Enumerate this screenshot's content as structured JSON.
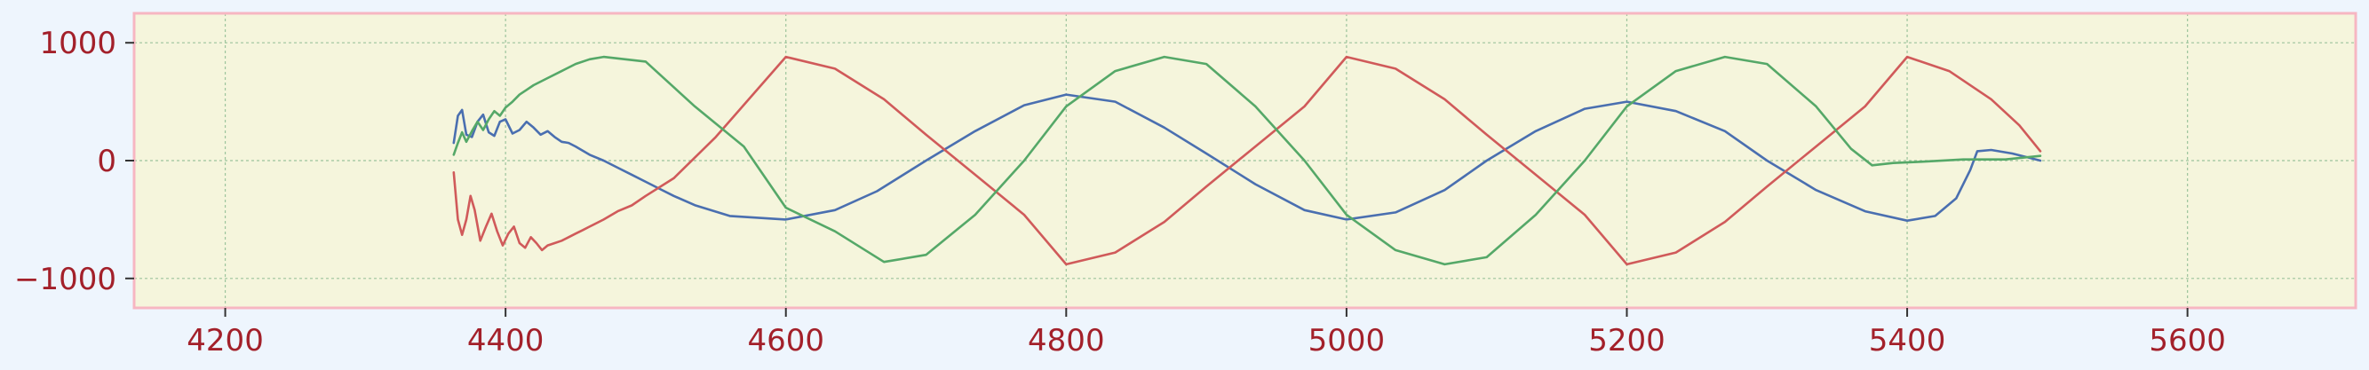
{
  "chart_data": {
    "type": "line",
    "title": "",
    "xlabel": "",
    "ylabel": "",
    "xlim": [
      4135,
      5720
    ],
    "ylim": [
      -1250,
      1250
    ],
    "grid": true,
    "legend": "none",
    "xticks": [
      4200,
      4400,
      4600,
      4800,
      5000,
      5200,
      5400,
      5600
    ],
    "yticks": [
      1000,
      0,
      -1000
    ],
    "xtick_labels": [
      "4200",
      "4400",
      "4600",
      "4800",
      "5000",
      "5200",
      "5400",
      "5600"
    ],
    "ytick_labels": [
      "1000",
      "0",
      "−1000"
    ],
    "colors": {
      "page_bg": "#eef5fd",
      "plot_bg": "#f5f5dc",
      "frame": "#f7b6c2",
      "grid": "#9cc49c",
      "tick_label": "#a3202a"
    },
    "series": [
      {
        "color": "#4a6fb0",
        "points": [
          [
            4363,
            150
          ],
          [
            4366,
            380
          ],
          [
            4369,
            430
          ],
          [
            4372,
            220
          ],
          [
            4376,
            200
          ],
          [
            4380,
            330
          ],
          [
            4384,
            390
          ],
          [
            4388,
            240
          ],
          [
            4392,
            210
          ],
          [
            4396,
            330
          ],
          [
            4400,
            350
          ],
          [
            4405,
            230
          ],
          [
            4410,
            260
          ],
          [
            4415,
            330
          ],
          [
            4420,
            280
          ],
          [
            4425,
            220
          ],
          [
            4430,
            250
          ],
          [
            4435,
            200
          ],
          [
            4440,
            160
          ],
          [
            4445,
            150
          ],
          [
            4450,
            120
          ],
          [
            4460,
            50
          ],
          [
            4470,
            0
          ],
          [
            4480,
            -60
          ],
          [
            4490,
            -120
          ],
          [
            4500,
            -180
          ],
          [
            4510,
            -240
          ],
          [
            4520,
            -300
          ],
          [
            4535,
            -378
          ],
          [
            4560,
            -470
          ],
          [
            4600,
            -500
          ],
          [
            4635,
            -420
          ],
          [
            4665,
            -260
          ],
          [
            4700,
            0
          ],
          [
            4735,
            250
          ],
          [
            4770,
            470
          ],
          [
            4800,
            560
          ],
          [
            4835,
            500
          ],
          [
            4870,
            280
          ],
          [
            4900,
            60
          ],
          [
            4935,
            -200
          ],
          [
            4970,
            -420
          ],
          [
            5000,
            -500
          ],
          [
            5035,
            -440
          ],
          [
            5070,
            -250
          ],
          [
            5100,
            0
          ],
          [
            5135,
            250
          ],
          [
            5170,
            440
          ],
          [
            5200,
            500
          ],
          [
            5235,
            420
          ],
          [
            5270,
            250
          ],
          [
            5300,
            0
          ],
          [
            5335,
            -250
          ],
          [
            5370,
            -430
          ],
          [
            5400,
            -510
          ],
          [
            5420,
            -470
          ],
          [
            5435,
            -320
          ],
          [
            5445,
            -80
          ],
          [
            5450,
            80
          ],
          [
            5460,
            90
          ],
          [
            5475,
            60
          ],
          [
            5495,
            0
          ]
        ]
      },
      {
        "color": "#d05a5a",
        "points": [
          [
            4363,
            -100
          ],
          [
            4366,
            -500
          ],
          [
            4369,
            -630
          ],
          [
            4372,
            -500
          ],
          [
            4375,
            -300
          ],
          [
            4378,
            -420
          ],
          [
            4382,
            -680
          ],
          [
            4386,
            -560
          ],
          [
            4390,
            -450
          ],
          [
            4394,
            -600
          ],
          [
            4398,
            -720
          ],
          [
            4402,
            -620
          ],
          [
            4406,
            -560
          ],
          [
            4410,
            -700
          ],
          [
            4414,
            -740
          ],
          [
            4418,
            -650
          ],
          [
            4422,
            -700
          ],
          [
            4426,
            -760
          ],
          [
            4430,
            -720
          ],
          [
            4435,
            -700
          ],
          [
            4440,
            -680
          ],
          [
            4445,
            -650
          ],
          [
            4450,
            -620
          ],
          [
            4455,
            -590
          ],
          [
            4460,
            -560
          ],
          [
            4470,
            -500
          ],
          [
            4480,
            -430
          ],
          [
            4490,
            -380
          ],
          [
            4500,
            -300
          ],
          [
            4520,
            -150
          ],
          [
            4550,
            200
          ],
          [
            4600,
            880
          ],
          [
            4635,
            780
          ],
          [
            4670,
            520
          ],
          [
            4700,
            220
          ],
          [
            4735,
            -120
          ],
          [
            4770,
            -460
          ],
          [
            4800,
            -880
          ],
          [
            4835,
            -780
          ],
          [
            4870,
            -520
          ],
          [
            4900,
            -220
          ],
          [
            4935,
            120
          ],
          [
            4970,
            460
          ],
          [
            5000,
            880
          ],
          [
            5035,
            780
          ],
          [
            5070,
            520
          ],
          [
            5100,
            220
          ],
          [
            5135,
            -120
          ],
          [
            5170,
            -460
          ],
          [
            5200,
            -880
          ],
          [
            5235,
            -780
          ],
          [
            5270,
            -520
          ],
          [
            5300,
            -220
          ],
          [
            5335,
            120
          ],
          [
            5370,
            460
          ],
          [
            5400,
            880
          ],
          [
            5430,
            760
          ],
          [
            5460,
            520
          ],
          [
            5480,
            300
          ],
          [
            5495,
            80
          ]
        ]
      },
      {
        "color": "#55a868",
        "points": [
          [
            4363,
            50
          ],
          [
            4366,
            150
          ],
          [
            4369,
            240
          ],
          [
            4372,
            160
          ],
          [
            4376,
            250
          ],
          [
            4380,
            330
          ],
          [
            4384,
            260
          ],
          [
            4388,
            350
          ],
          [
            4392,
            420
          ],
          [
            4396,
            380
          ],
          [
            4400,
            450
          ],
          [
            4405,
            500
          ],
          [
            4410,
            560
          ],
          [
            4415,
            600
          ],
          [
            4420,
            640
          ],
          [
            4430,
            700
          ],
          [
            4440,
            760
          ],
          [
            4450,
            820
          ],
          [
            4460,
            860
          ],
          [
            4470,
            880
          ],
          [
            4500,
            840
          ],
          [
            4535,
            460
          ],
          [
            4570,
            120
          ],
          [
            4600,
            -400
          ],
          [
            4635,
            -600
          ],
          [
            4670,
            -860
          ],
          [
            4700,
            -800
          ],
          [
            4735,
            -460
          ],
          [
            4770,
            0
          ],
          [
            4800,
            460
          ],
          [
            4835,
            760
          ],
          [
            4870,
            880
          ],
          [
            4900,
            820
          ],
          [
            4935,
            460
          ],
          [
            4970,
            0
          ],
          [
            5000,
            -460
          ],
          [
            5035,
            -760
          ],
          [
            5070,
            -880
          ],
          [
            5100,
            -820
          ],
          [
            5135,
            -460
          ],
          [
            5170,
            0
          ],
          [
            5200,
            460
          ],
          [
            5235,
            760
          ],
          [
            5270,
            880
          ],
          [
            5300,
            820
          ],
          [
            5335,
            460
          ],
          [
            5360,
            100
          ],
          [
            5375,
            -40
          ],
          [
            5390,
            -20
          ],
          [
            5410,
            -10
          ],
          [
            5440,
            10
          ],
          [
            5470,
            10
          ],
          [
            5495,
            40
          ]
        ]
      }
    ]
  }
}
